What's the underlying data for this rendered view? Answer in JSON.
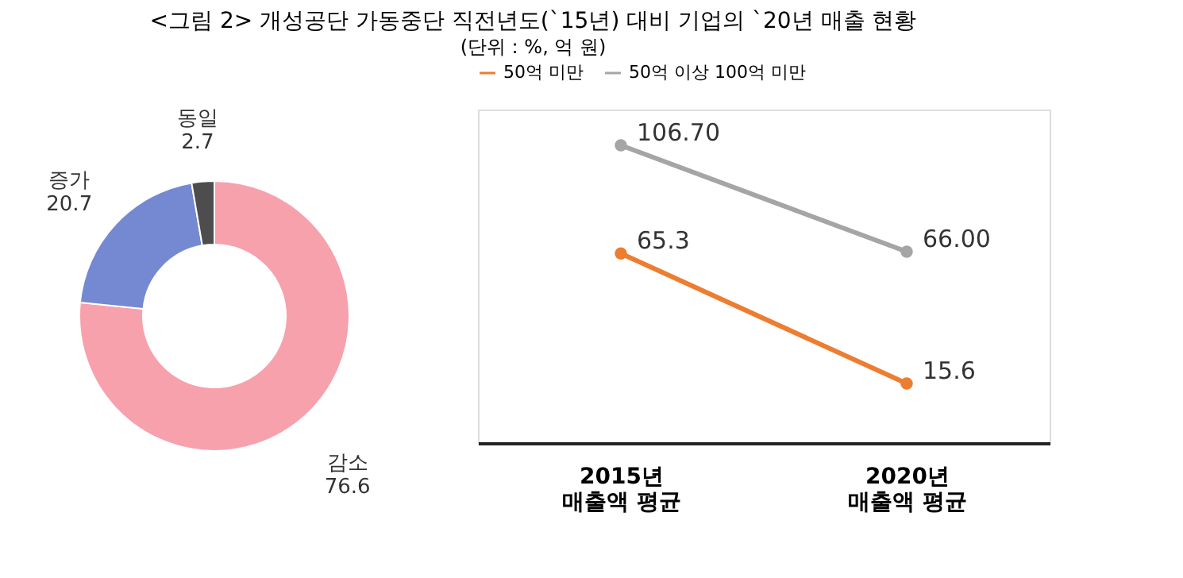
{
  "chart_data": [
    {
      "type": "donut",
      "title": "<그림 2> 개성공단 가동중단 직전년도(`15년) 대비 기업의 `20년 매출 현황",
      "annotations": [
        "(단위 : %, 억 원)"
      ],
      "categories": [
        "감소",
        "증가",
        "동일"
      ],
      "values": [
        76.6,
        20.7,
        2.7
      ],
      "colors": [
        "#f7a1ad",
        "#7489d1",
        "#4d4d4d"
      ],
      "data_labels": true
    },
    {
      "type": "line",
      "categories": [
        "2015년 매출액 평균",
        "2020년 매출액 평균"
      ],
      "legend": "top",
      "marker": "circle",
      "grid": false,
      "series": [
        {
          "name": "50억 미만",
          "color": "#ed7d31",
          "values": [
            65.3,
            15.6
          ],
          "value_labels": [
            "65.3",
            "15.6"
          ]
        },
        {
          "name": "50억 이상 100억 미만",
          "color": "#a5a5a5",
          "values": [
            106.7,
            66.0
          ],
          "value_labels": [
            "106.70",
            "66.00"
          ]
        }
      ]
    }
  ]
}
